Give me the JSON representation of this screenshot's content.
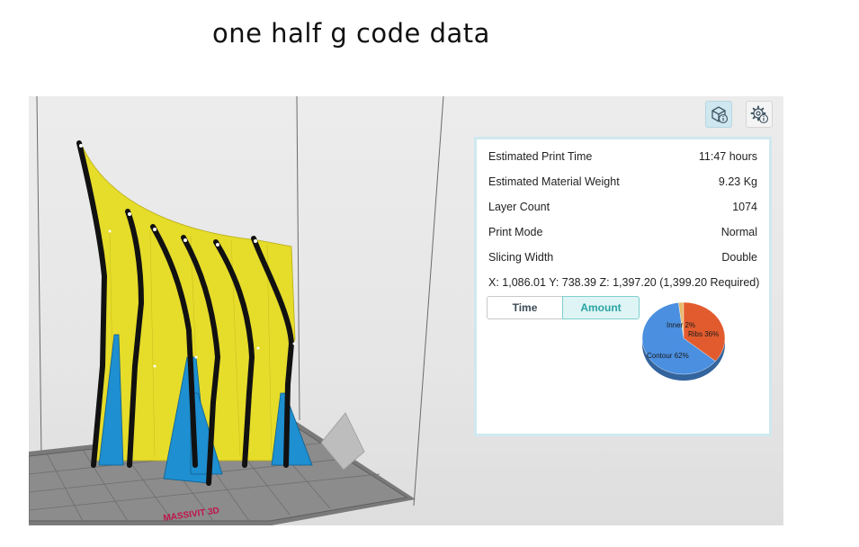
{
  "page": {
    "title": "one half g code data"
  },
  "toolbar": {
    "model_info_icon": "cube-info-icon",
    "settings_info_icon": "gear-info-icon"
  },
  "print_info": {
    "rows": [
      {
        "label": "Estimated Print Time",
        "value": "11:47 hours"
      },
      {
        "label": "Estimated Material Weight",
        "value": "9.23 Kg"
      },
      {
        "label": "Layer Count",
        "value": "1074"
      },
      {
        "label": "Print Mode",
        "value": "Normal"
      },
      {
        "label": "Slicing Width",
        "value": "Double"
      }
    ],
    "coords": "X: 1,086.01  Y: 738.39  Z: 1,397.20 (1,399.20 Required)"
  },
  "tabs": [
    {
      "label": "Time",
      "active": false
    },
    {
      "label": "Amount",
      "active": true
    }
  ],
  "pie": {
    "slices": [
      {
        "name": "Inner",
        "label": "Inner 2%",
        "percent": 2,
        "color": "#e8b86a"
      },
      {
        "name": "Ribs",
        "label": "Ribs 36%",
        "percent": 36,
        "color": "#e25b2e"
      },
      {
        "name": "Contour",
        "label": "Contour 62%",
        "percent": 62,
        "color": "#4a8fe0"
      }
    ]
  },
  "colors": {
    "accent": "#2aa4a4",
    "panel_border": "#cfe9ee",
    "model_fill": "#e6dc2a",
    "rib_color": "#111111",
    "support_color": "#1e8fd0"
  },
  "build_plate": {
    "logo_text": "MASSIVIT 3D"
  }
}
